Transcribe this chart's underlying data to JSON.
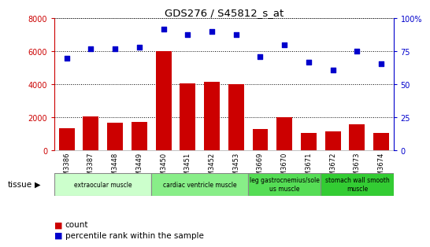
{
  "title": "GDS276 / S45812_s_at",
  "samples": [
    "GSM3386",
    "GSM3387",
    "GSM3448",
    "GSM3449",
    "GSM3450",
    "GSM3451",
    "GSM3452",
    "GSM3453",
    "GSM3669",
    "GSM3670",
    "GSM3671",
    "GSM3672",
    "GSM3673",
    "GSM3674"
  ],
  "counts": [
    1350,
    2050,
    1700,
    1750,
    6000,
    4050,
    4150,
    4000,
    1300,
    2000,
    1050,
    1150,
    1600,
    1050
  ],
  "percentiles": [
    70,
    77,
    77,
    78,
    92,
    88,
    90,
    88,
    71,
    80,
    67,
    61,
    75,
    66
  ],
  "bar_color": "#cc0000",
  "dot_color": "#0000cc",
  "ylim_left": [
    0,
    8000
  ],
  "ylim_right": [
    0,
    100
  ],
  "yticks_left": [
    0,
    2000,
    4000,
    6000,
    8000
  ],
  "yticks_right": [
    0,
    25,
    50,
    75,
    100
  ],
  "tissue_groups": [
    {
      "label": "extraocular muscle",
      "start": 0,
      "end": 4,
      "color": "#ccffcc"
    },
    {
      "label": "cardiac ventricle muscle",
      "start": 4,
      "end": 8,
      "color": "#88ee88"
    },
    {
      "label": "leg gastrocnemius/sole\nus muscle",
      "start": 8,
      "end": 11,
      "color": "#55dd55"
    },
    {
      "label": "stomach wall smooth\nmuscle",
      "start": 11,
      "end": 14,
      "color": "#33cc33"
    }
  ],
  "tissue_label": "tissue",
  "legend_count_label": "count",
  "legend_pct_label": "percentile rank within the sample",
  "bar_width": 0.65,
  "left_axis_color": "#cc0000",
  "right_axis_color": "#0000cc",
  "background_color": "#ffffff"
}
